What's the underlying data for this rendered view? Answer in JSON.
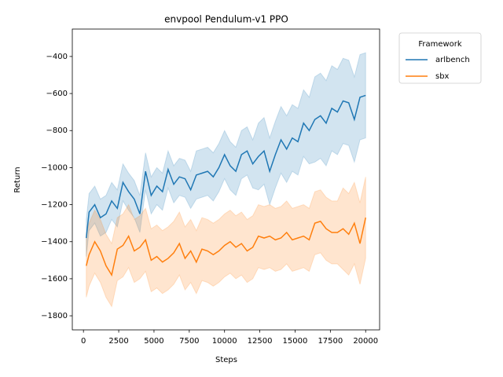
{
  "chart_data": {
    "type": "line",
    "title": "envpool Pendulum-v1 PPO",
    "x_label": "Steps",
    "y_label": "Return",
    "legend_title": "Framework",
    "legend_position": "outside upper right",
    "x": [
      200,
      400,
      800,
      1200,
      1600,
      2000,
      2400,
      2800,
      3200,
      3600,
      4000,
      4400,
      4800,
      5200,
      5600,
      6000,
      6400,
      6800,
      7200,
      7600,
      8000,
      8400,
      8800,
      9200,
      9600,
      10000,
      10400,
      10800,
      11200,
      11600,
      12000,
      12400,
      12800,
      13200,
      13600,
      14000,
      14400,
      14800,
      15200,
      15600,
      16000,
      16400,
      16800,
      17200,
      17600,
      18000,
      18400,
      18800,
      19200,
      19600,
      20000
    ],
    "series": [
      {
        "name": "arlbench",
        "color": "#1f77b4",
        "values": [
          -1380,
          -1240,
          -1200,
          -1270,
          -1250,
          -1180,
          -1220,
          -1080,
          -1130,
          -1170,
          -1250,
          -1020,
          -1150,
          -1100,
          -1130,
          -1010,
          -1090,
          -1050,
          -1060,
          -1120,
          -1040,
          -1030,
          -1020,
          -1050,
          -1000,
          -930,
          -990,
          -1020,
          -930,
          -910,
          -980,
          -940,
          -910,
          -1020,
          -930,
          -850,
          -900,
          -840,
          -860,
          -760,
          -800,
          -740,
          -720,
          -760,
          -680,
          -700,
          -640,
          -650,
          -740,
          -620,
          -610
        ],
        "lower": [
          -1480,
          -1340,
          -1300,
          -1370,
          -1350,
          -1280,
          -1320,
          -1180,
          -1230,
          -1270,
          -1350,
          -1120,
          -1250,
          -1200,
          -1230,
          -1110,
          -1190,
          -1150,
          -1160,
          -1220,
          -1170,
          -1160,
          -1150,
          -1180,
          -1130,
          -1060,
          -1120,
          -1150,
          -1060,
          -1040,
          -1110,
          -1120,
          -1090,
          -1200,
          -1110,
          -1030,
          -1080,
          -1020,
          -1040,
          -940,
          -980,
          -970,
          -950,
          -990,
          -910,
          -930,
          -870,
          -880,
          -970,
          -850,
          -840
        ],
        "upper": [
          -1280,
          -1140,
          -1100,
          -1170,
          -1150,
          -1080,
          -1120,
          -980,
          -1030,
          -1070,
          -1150,
          -920,
          -1050,
          -1000,
          -1030,
          -910,
          -990,
          -950,
          -960,
          -1020,
          -910,
          -900,
          -890,
          -920,
          -870,
          -800,
          -860,
          -890,
          -800,
          -780,
          -850,
          -760,
          -730,
          -840,
          -750,
          -670,
          -720,
          -660,
          -680,
          -580,
          -620,
          -510,
          -490,
          -530,
          -450,
          -470,
          -410,
          -420,
          -510,
          -390,
          -380
        ]
      },
      {
        "name": "sbx",
        "color": "#ff7f0e",
        "values": [
          -1530,
          -1470,
          -1400,
          -1450,
          -1530,
          -1580,
          -1440,
          -1420,
          -1370,
          -1450,
          -1430,
          -1390,
          -1500,
          -1480,
          -1510,
          -1490,
          -1460,
          -1410,
          -1490,
          -1450,
          -1510,
          -1440,
          -1450,
          -1470,
          -1450,
          -1420,
          -1400,
          -1430,
          -1410,
          -1450,
          -1430,
          -1370,
          -1380,
          -1370,
          -1390,
          -1380,
          -1350,
          -1390,
          -1380,
          -1370,
          -1390,
          -1300,
          -1290,
          -1330,
          -1350,
          -1350,
          -1330,
          -1360,
          -1300,
          -1410,
          -1270
        ],
        "lower": [
          -1700,
          -1640,
          -1570,
          -1620,
          -1700,
          -1750,
          -1610,
          -1590,
          -1540,
          -1620,
          -1600,
          -1560,
          -1670,
          -1650,
          -1680,
          -1660,
          -1630,
          -1580,
          -1660,
          -1620,
          -1680,
          -1610,
          -1620,
          -1640,
          -1620,
          -1590,
          -1570,
          -1600,
          -1580,
          -1620,
          -1600,
          -1540,
          -1550,
          -1540,
          -1560,
          -1550,
          -1520,
          -1560,
          -1550,
          -1540,
          -1560,
          -1470,
          -1460,
          -1500,
          -1520,
          -1520,
          -1550,
          -1580,
          -1520,
          -1630,
          -1490
        ],
        "upper": [
          -1360,
          -1300,
          -1230,
          -1280,
          -1360,
          -1410,
          -1270,
          -1250,
          -1200,
          -1280,
          -1260,
          -1220,
          -1330,
          -1310,
          -1340,
          -1320,
          -1290,
          -1240,
          -1320,
          -1280,
          -1340,
          -1270,
          -1280,
          -1300,
          -1280,
          -1250,
          -1230,
          -1260,
          -1240,
          -1280,
          -1260,
          -1200,
          -1210,
          -1200,
          -1220,
          -1210,
          -1180,
          -1220,
          -1210,
          -1200,
          -1220,
          -1130,
          -1120,
          -1160,
          -1180,
          -1180,
          -1110,
          -1140,
          -1080,
          -1190,
          -1050
        ]
      }
    ],
    "xlim": [
      -790,
      20990
    ],
    "ylim": [
      -1876,
      -252
    ],
    "xticks": [
      0,
      2500,
      5000,
      7500,
      10000,
      12500,
      15000,
      17500,
      20000
    ],
    "yticks": [
      {
        "value": -1800,
        "label": "−1800"
      },
      {
        "value": -1600,
        "label": "−1600"
      },
      {
        "value": -1400,
        "label": "−1400"
      },
      {
        "value": -1200,
        "label": "−1200"
      },
      {
        "value": -1000,
        "label": "−1000"
      },
      {
        "value": -800,
        "label": "−800"
      },
      {
        "value": -600,
        "label": "−600"
      },
      {
        "value": -400,
        "label": "−400"
      }
    ],
    "grid": false
  }
}
